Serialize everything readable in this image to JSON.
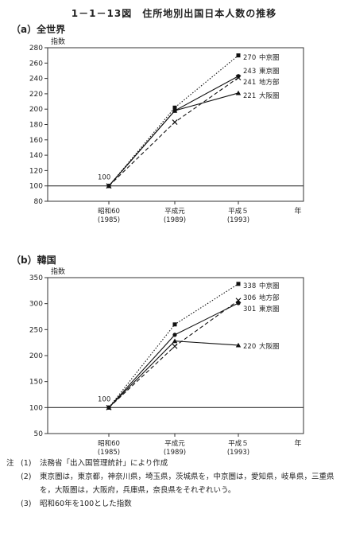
{
  "title": "1－1－13図　住所地別出国日本人数の推移",
  "chart_data": [
    {
      "type": "line",
      "panel_label": "（a）全世界",
      "ylabel": "指数",
      "xlabel": "年",
      "ylim": [
        80,
        280
      ],
      "yticks": [
        80,
        100,
        120,
        140,
        160,
        180,
        200,
        220,
        240,
        260,
        280
      ],
      "baseline": 100,
      "categories": [
        {
          "line1": "昭和60",
          "line2": "(1985)"
        },
        {
          "line1": "平成元",
          "line2": "(1989)"
        },
        {
          "line1": "平成５",
          "line2": "(1993)"
        }
      ],
      "start_label": "100",
      "series": [
        {
          "name": "中京圏",
          "end_label": "270",
          "values": [
            100,
            202,
            270
          ],
          "marker": "square",
          "dash": "dotted"
        },
        {
          "name": "東京圏",
          "end_label": "243",
          "values": [
            100,
            198,
            243
          ],
          "marker": "circle",
          "dash": "solid"
        },
        {
          "name": "地方部",
          "end_label": "241",
          "values": [
            100,
            183,
            241
          ],
          "marker": "cross",
          "dash": "dashed"
        },
        {
          "name": "大阪圏",
          "end_label": "221",
          "values": [
            100,
            198,
            221
          ],
          "marker": "triangle",
          "dash": "solid"
        }
      ]
    },
    {
      "type": "line",
      "panel_label": "（b）韓国",
      "ylabel": "指数",
      "xlabel": "年",
      "ylim": [
        50,
        350
      ],
      "yticks": [
        50,
        100,
        150,
        200,
        250,
        300,
        350
      ],
      "baseline": 100,
      "categories": [
        {
          "line1": "昭和60",
          "line2": "(1985)"
        },
        {
          "line1": "平成元",
          "line2": "(1989)"
        },
        {
          "line1": "平成５",
          "line2": "(1993)"
        }
      ],
      "start_label": "100",
      "series": [
        {
          "name": "中京圏",
          "end_label": "338",
          "values": [
            100,
            260,
            338
          ],
          "marker": "square",
          "dash": "dotted"
        },
        {
          "name": "地方部",
          "end_label": "306",
          "values": [
            100,
            218,
            306
          ],
          "marker": "cross",
          "dash": "dashed"
        },
        {
          "name": "東京圏",
          "end_label": "301",
          "values": [
            100,
            240,
            301
          ],
          "marker": "circle",
          "dash": "solid"
        },
        {
          "name": "大阪圏",
          "end_label": "220",
          "values": [
            100,
            228,
            220
          ],
          "marker": "triangle",
          "dash": "solid"
        }
      ]
    }
  ],
  "notes": {
    "head": "注",
    "items": [
      {
        "num": "(1)",
        "text": "法務省「出入国管理統計」により作成"
      },
      {
        "num": "(2)",
        "text": "東京圏は，東京都，神奈川県，埼玉県，茨城県を，中京圏は，愛知県，岐阜県，三重県を，大阪圏は，大阪府，兵庫県，奈良県をそれぞれいう。"
      },
      {
        "num": "(3)",
        "text": "昭和60年を100とした指数"
      }
    ]
  }
}
